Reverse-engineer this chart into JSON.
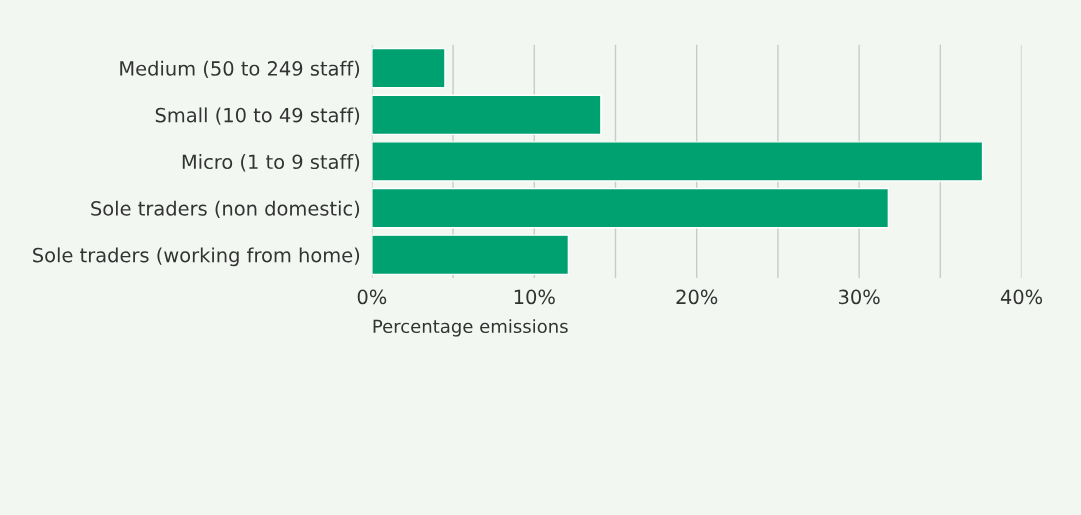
{
  "chart_data": {
    "type": "bar",
    "orientation": "horizontal",
    "categories": [
      "Medium (50 to 249 staff)",
      "Small (10 to 49 staff)",
      "Micro (1 to 9 staff)",
      "Sole traders (non domestic)",
      "Sole traders (working from home)"
    ],
    "values": [
      4.5,
      14.1,
      37.6,
      31.8,
      12.1
    ],
    "color": "#00a170",
    "xlabel": "Percentage emissions",
    "xlim": [
      0,
      40
    ],
    "xticks": [
      {
        "value": 0,
        "label": "0%"
      },
      {
        "value": 5,
        "label": null
      },
      {
        "value": 10,
        "label": "10%"
      },
      {
        "value": 15,
        "label": null
      },
      {
        "value": 20,
        "label": "20%"
      },
      {
        "value": 25,
        "label": null
      },
      {
        "value": 30,
        "label": "30%"
      },
      {
        "value": 35,
        "label": null
      },
      {
        "value": 40,
        "label": "40%"
      }
    ],
    "grid": "x"
  }
}
